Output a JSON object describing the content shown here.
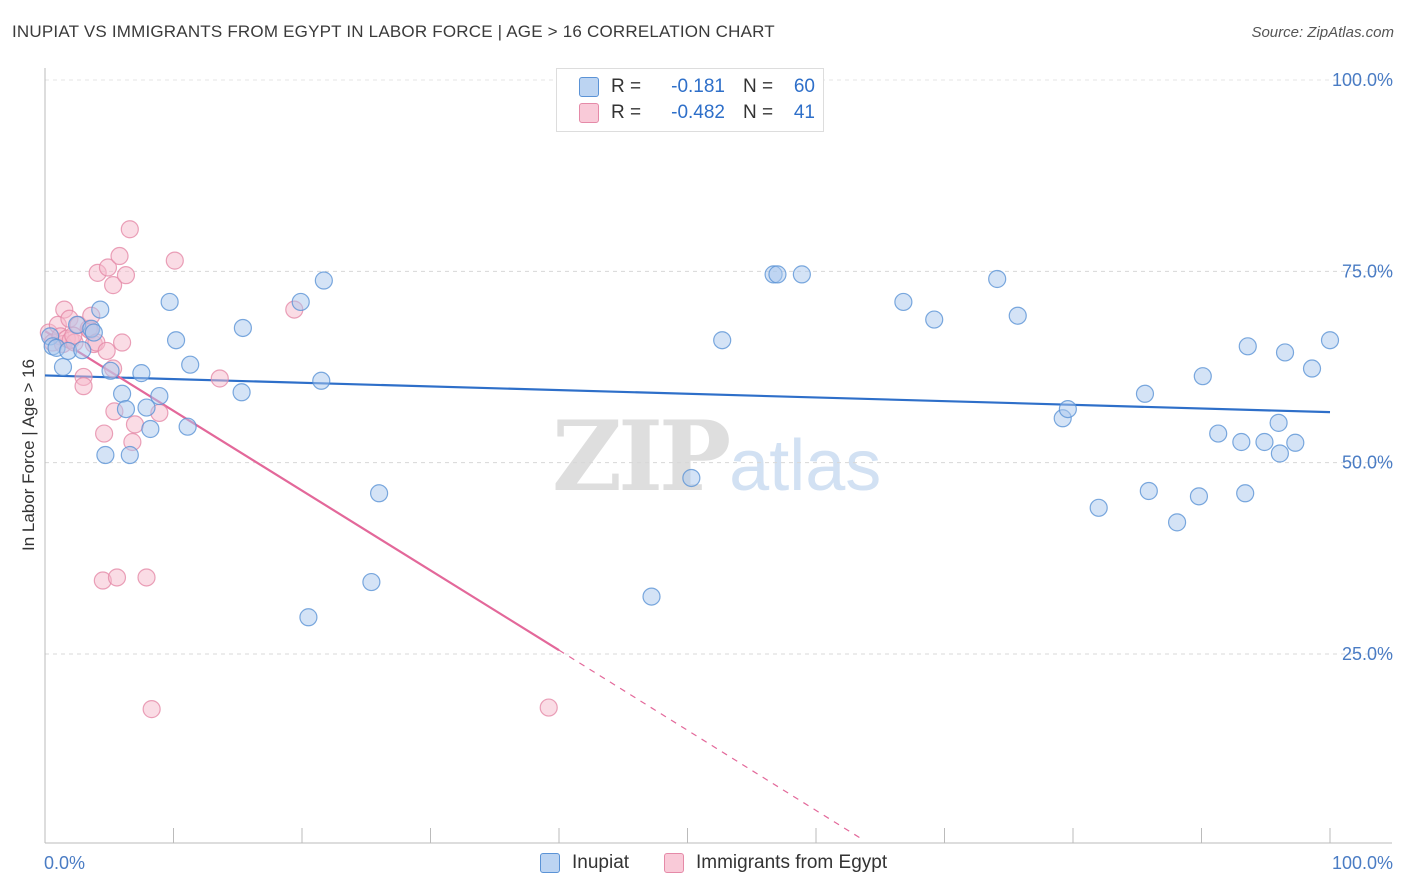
{
  "header": {
    "title": "INUPIAT VS IMMIGRANTS FROM EGYPT IN LABOR FORCE | AGE > 16 CORRELATION CHART",
    "source": "Source: ZipAtlas.com"
  },
  "watermark": {
    "zip": "ZIP",
    "atlas": "atlas"
  },
  "legend": {
    "rows": [
      {
        "r_label": "R =",
        "r_value": "-0.181",
        "n_label": "N =",
        "n_value": "60"
      },
      {
        "r_label": "R =",
        "r_value": "-0.482",
        "n_label": "N =",
        "n_value": "41"
      }
    ]
  },
  "bottom_legend": {
    "inupiat": "Inupiat",
    "egypt": "Immigrants from Egypt"
  },
  "colors": {
    "blue_fill": "#a9c8ee",
    "blue_stroke": "#5b93d6",
    "blue_line": "#2e6fc9",
    "pink_fill": "#f6b9cc",
    "pink_stroke": "#e58aa8",
    "pink_line": "#e3689a",
    "tick_text": "#4a7cc4",
    "grid": "#d8d8d8"
  },
  "chart_data": {
    "type": "scatter",
    "title": "INUPIAT VS IMMIGRANTS FROM EGYPT IN LABOR FORCE | AGE > 16 CORRELATION CHART",
    "xlabel": "",
    "ylabel": "In Labor Force | Age > 16",
    "xlim": [
      0,
      100
    ],
    "ylim": [
      0,
      105
    ],
    "x_tick_labels": [
      "0.0%",
      "100.0%"
    ],
    "y_ticks": [
      {
        "value": 100,
        "label": "100.0%"
      },
      {
        "value": 75,
        "label": "75.0%"
      },
      {
        "value": 50,
        "label": "50.0%"
      },
      {
        "value": 25,
        "label": "25.0%"
      }
    ],
    "series": [
      {
        "name": "Inupiat",
        "color": "blue",
        "r": -0.181,
        "n": 60,
        "trend": {
          "x0": 0,
          "y0": 61.4,
          "x1": 100,
          "y1": 56.6
        },
        "points": [
          [
            0.4,
            66.5
          ],
          [
            0.6,
            65.2
          ],
          [
            0.9,
            65.0
          ],
          [
            1.4,
            62.5
          ],
          [
            1.8,
            64.6
          ],
          [
            2.5,
            68.0
          ],
          [
            2.9,
            64.7
          ],
          [
            3.6,
            67.5
          ],
          [
            3.8,
            67.0
          ],
          [
            4.3,
            70.0
          ],
          [
            4.7,
            51.0
          ],
          [
            5.1,
            62.0
          ],
          [
            6.0,
            59.0
          ],
          [
            6.3,
            57.0
          ],
          [
            6.6,
            51.0
          ],
          [
            7.5,
            61.7
          ],
          [
            7.9,
            57.2
          ],
          [
            8.2,
            54.4
          ],
          [
            8.9,
            58.7
          ],
          [
            9.7,
            71.0
          ],
          [
            10.2,
            66.0
          ],
          [
            11.1,
            54.7
          ],
          [
            11.3,
            62.8
          ],
          [
            15.3,
            59.2
          ],
          [
            15.4,
            67.6
          ],
          [
            19.9,
            71.0
          ],
          [
            20.5,
            29.8
          ],
          [
            21.5,
            60.7
          ],
          [
            21.7,
            73.8
          ],
          [
            26.0,
            46.0
          ],
          [
            25.4,
            34.4
          ],
          [
            47.2,
            32.5
          ],
          [
            50.3,
            48.0
          ],
          [
            52.7,
            66.0
          ],
          [
            56.7,
            74.6
          ],
          [
            57.0,
            74.6
          ],
          [
            58.9,
            74.6
          ],
          [
            66.8,
            71.0
          ],
          [
            69.2,
            68.7
          ],
          [
            74.1,
            74.0
          ],
          [
            75.7,
            69.2
          ],
          [
            79.2,
            55.8
          ],
          [
            79.6,
            57.0
          ],
          [
            82.0,
            44.1
          ],
          [
            85.6,
            59.0
          ],
          [
            85.9,
            46.3
          ],
          [
            88.1,
            42.2
          ],
          [
            89.8,
            45.6
          ],
          [
            90.1,
            61.3
          ],
          [
            91.3,
            53.8
          ],
          [
            93.1,
            52.7
          ],
          [
            93.4,
            46.0
          ],
          [
            93.6,
            65.2
          ],
          [
            94.9,
            52.7
          ],
          [
            96.0,
            55.2
          ],
          [
            96.1,
            51.2
          ],
          [
            96.5,
            64.4
          ],
          [
            97.3,
            52.6
          ],
          [
            98.6,
            62.3
          ],
          [
            100.0,
            66.0
          ]
        ]
      },
      {
        "name": "Immigrants from Egypt",
        "color": "pink",
        "r": -0.482,
        "n": 41,
        "trend": {
          "x0": 0,
          "y0": 67.2,
          "x1": 40.0,
          "y1": 25.5,
          "dash_x1": 63.4,
          "dash_y1": 1.0
        },
        "points": [
          [
            0.3,
            67.0
          ],
          [
            0.6,
            65.7
          ],
          [
            1.0,
            68.0
          ],
          [
            1.2,
            66.5
          ],
          [
            1.4,
            65.5
          ],
          [
            1.5,
            70.0
          ],
          [
            1.7,
            66.2
          ],
          [
            1.9,
            68.8
          ],
          [
            2.0,
            66.0
          ],
          [
            2.3,
            65.7
          ],
          [
            2.6,
            68.0
          ],
          [
            3.0,
            61.2
          ],
          [
            3.0,
            60.0
          ],
          [
            3.4,
            67.5
          ],
          [
            3.5,
            67.3
          ],
          [
            3.6,
            69.2
          ],
          [
            3.8,
            65.5
          ],
          [
            4.0,
            65.7
          ],
          [
            4.1,
            74.8
          ],
          [
            4.5,
            34.6
          ],
          [
            4.6,
            53.8
          ],
          [
            4.8,
            64.6
          ],
          [
            4.9,
            75.5
          ],
          [
            5.3,
            62.3
          ],
          [
            5.3,
            73.2
          ],
          [
            5.4,
            56.7
          ],
          [
            5.6,
            35.0
          ],
          [
            5.8,
            77.0
          ],
          [
            6.0,
            65.7
          ],
          [
            6.3,
            74.5
          ],
          [
            6.6,
            80.5
          ],
          [
            6.8,
            52.7
          ],
          [
            7.0,
            55.0
          ],
          [
            7.9,
            35.0
          ],
          [
            8.3,
            17.8
          ],
          [
            8.9,
            56.5
          ],
          [
            10.1,
            76.4
          ],
          [
            13.6,
            61.0
          ],
          [
            19.4,
            70.0
          ],
          [
            39.2,
            18.0
          ],
          [
            2.2,
            66.6
          ]
        ]
      }
    ]
  }
}
